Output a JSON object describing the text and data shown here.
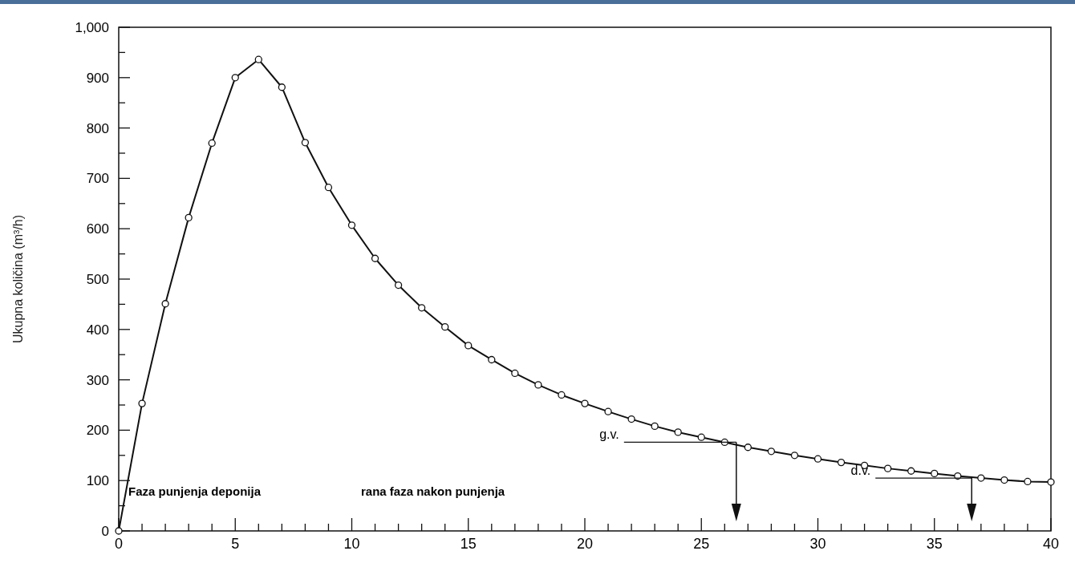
{
  "chart_data": {
    "type": "line",
    "ylabel": "Ukupna količina (m³/h)",
    "x": [
      0,
      1,
      2,
      3,
      4,
      5,
      6,
      7,
      8,
      9,
      10,
      11,
      12,
      13,
      14,
      15,
      16,
      17,
      18,
      19,
      20,
      21,
      22,
      23,
      24,
      25,
      26,
      27,
      28,
      29,
      30,
      31,
      32,
      33,
      34,
      35,
      36,
      37,
      38,
      39,
      40
    ],
    "series": [
      {
        "color": "#111111",
        "values": [
          0,
          253,
          451,
          622,
          770,
          900,
          936,
          881,
          771,
          682,
          607,
          541,
          488,
          443,
          405,
          368,
          340,
          313,
          290,
          270,
          253,
          237,
          222,
          208,
          196,
          186,
          176,
          166,
          158,
          150,
          143,
          136,
          130,
          124,
          119,
          114,
          109,
          105,
          101,
          98,
          97
        ]
      }
    ],
    "marker": "circle",
    "line_style": "solid",
    "grid": false,
    "xlim": [
      0,
      40
    ],
    "ylim": [
      0,
      1000
    ],
    "xticks": [
      0,
      {
        "value": 1,
        "label": null
      },
      {
        "value": 2,
        "label": null
      },
      {
        "value": 3,
        "label": null
      },
      {
        "value": 4,
        "label": null
      },
      5,
      {
        "value": 6,
        "label": null
      },
      {
        "value": 7,
        "label": null
      },
      {
        "value": 8,
        "label": null
      },
      {
        "value": 9,
        "label": null
      },
      10,
      {
        "value": 11,
        "label": null
      },
      {
        "value": 12,
        "label": null
      },
      {
        "value": 13,
        "label": null
      },
      {
        "value": 14,
        "label": null
      },
      15,
      {
        "value": 16,
        "label": null
      },
      {
        "value": 17,
        "label": null
      },
      {
        "value": 18,
        "label": null
      },
      {
        "value": 19,
        "label": null
      },
      20,
      {
        "value": 21,
        "label": null
      },
      {
        "value": 22,
        "label": null
      },
      {
        "value": 23,
        "label": null
      },
      {
        "value": 24,
        "label": null
      },
      25,
      {
        "value": 26,
        "label": null
      },
      {
        "value": 27,
        "label": null
      },
      {
        "value": 28,
        "label": null
      },
      {
        "value": 29,
        "label": null
      },
      30,
      {
        "value": 31,
        "label": null
      },
      {
        "value": 32,
        "label": null
      },
      {
        "value": 33,
        "label": null
      },
      {
        "value": 34,
        "label": null
      },
      35,
      {
        "value": 36,
        "label": null
      },
      {
        "value": 37,
        "label": null
      },
      {
        "value": 38,
        "label": null
      },
      {
        "value": 39,
        "label": null
      },
      40
    ],
    "yticks": [
      0,
      {
        "value": 50,
        "label": null
      },
      100,
      {
        "value": 150,
        "label": null
      },
      200,
      {
        "value": 250,
        "label": null
      },
      300,
      {
        "value": 350,
        "label": null
      },
      400,
      {
        "value": 450,
        "label": null
      },
      500,
      {
        "value": 550,
        "label": null
      },
      600,
      {
        "value": 650,
        "label": null
      },
      700,
      {
        "value": 750,
        "label": null
      },
      800,
      {
        "value": 850,
        "label": null
      },
      900,
      {
        "value": 950,
        "label": null
      },
      {
        "value": 1000,
        "label": "1,000"
      }
    ],
    "annotations": [
      "Faza punjenja deponija",
      "rana faza nakon punjenja",
      {
        "text": "g.v.",
        "x": 26.5,
        "y": 176
      },
      {
        "text": "d.v.",
        "x": 36.6,
        "y": 105
      }
    ]
  }
}
